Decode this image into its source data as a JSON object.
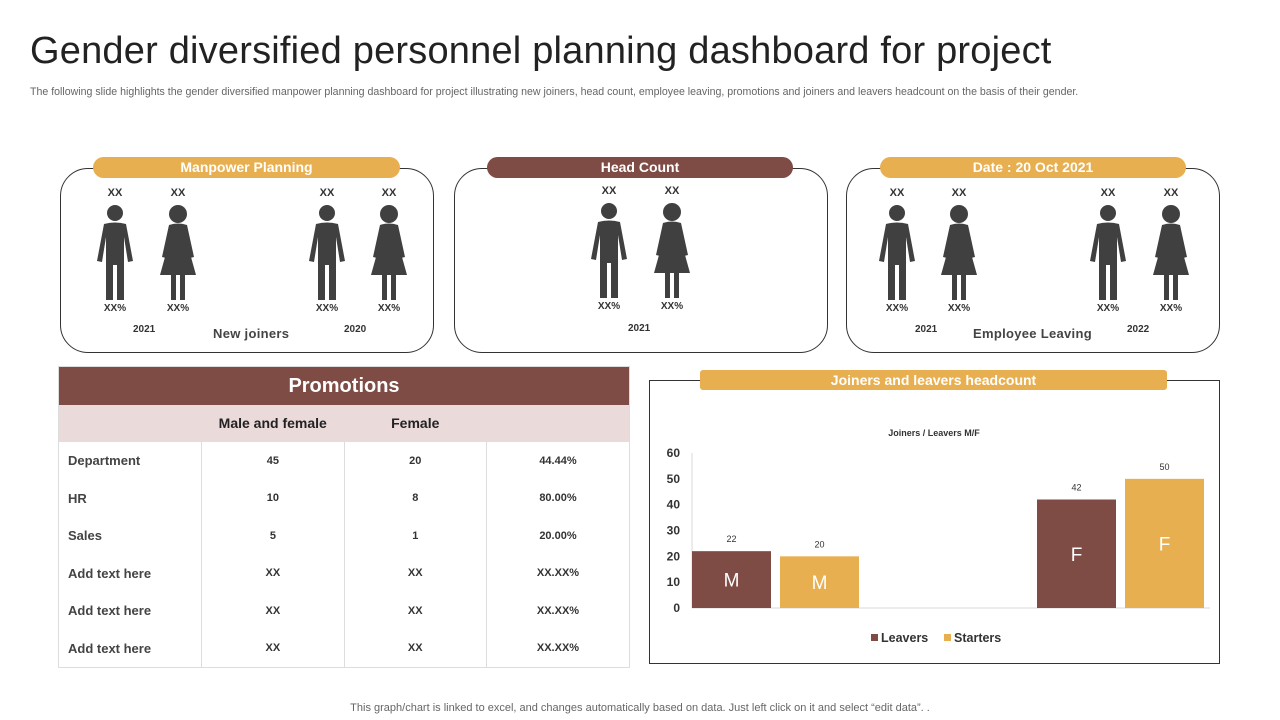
{
  "header": {
    "title": "Gender diversified personnel planning dashboard for project",
    "subtitle": "The following slide highlights the gender diversified manpower planning dashboard for project illustrating new joiners, head count, employee leaving, promotions and joiners and leavers headcount on the basis of their gender."
  },
  "panels": {
    "manpower": {
      "label": "Manpower Planning",
      "caption": "New joiners",
      "groups": [
        {
          "year": "2021",
          "male_count": "XX",
          "male_pct": "XX%",
          "female_count": "XX",
          "female_pct": "XX%"
        },
        {
          "year": "2020",
          "male_count": "XX",
          "male_pct": "XX%",
          "female_count": "XX",
          "female_pct": "XX%"
        }
      ]
    },
    "headcount": {
      "label": "Head Count",
      "groups": [
        {
          "year": "2021",
          "male_count": "XX",
          "male_pct": "XX%",
          "female_count": "XX",
          "female_pct": "XX%"
        }
      ]
    },
    "leaving": {
      "label": "Date : 20 Oct 2021",
      "caption": "Employee Leaving",
      "groups": [
        {
          "year": "2021",
          "male_count": "XX",
          "male_pct": "XX%",
          "female_count": "XX",
          "female_pct": "XX%"
        },
        {
          "year": "2022",
          "male_count": "XX",
          "male_pct": "XX%",
          "female_count": "XX",
          "female_pct": "XX%"
        }
      ]
    }
  },
  "promotions": {
    "title": "Promotions",
    "col_male_female": "Male and female",
    "col_female": "Female",
    "rows": [
      {
        "label": "Department",
        "mf": "45",
        "f": "20",
        "pct": "44.44%"
      },
      {
        "label": "HR",
        "mf": "10",
        "f": "8",
        "pct": "80.00%"
      },
      {
        "label": "Sales",
        "mf": "5",
        "f": "1",
        "pct": "20.00%"
      },
      {
        "label": "Add text here",
        "mf": "XX",
        "f": "XX",
        "pct": "XX.XX%"
      },
      {
        "label": "Add text here",
        "mf": "XX",
        "f": "XX",
        "pct": "XX.XX%"
      },
      {
        "label": "Add text here",
        "mf": "XX",
        "f": "XX",
        "pct": "XX.XX%"
      }
    ]
  },
  "colors": {
    "brown": "#7F4B45",
    "gold": "#E8AF51",
    "figure": "#404040",
    "pink": "#EBDADA"
  },
  "chart_data": {
    "type": "bar",
    "panel_label": "Joiners and leavers headcount",
    "title": "Joiners / Leavers M/F",
    "categories": [
      "M",
      "F"
    ],
    "series": [
      {
        "name": "Leavers",
        "values": [
          22,
          42
        ],
        "color": "#7F4B45"
      },
      {
        "name": "Starters",
        "values": [
          20,
          50
        ],
        "color": "#E8AF51"
      }
    ],
    "yticks": [
      "0",
      "10",
      "20",
      "30",
      "40",
      "50",
      "60"
    ],
    "ylim": [
      0,
      60
    ],
    "legend": "bottom"
  },
  "footer": {
    "note": "This graph/chart is linked to excel,  and changes automatically based on data. Just left click on it and select “edit data”. ."
  }
}
